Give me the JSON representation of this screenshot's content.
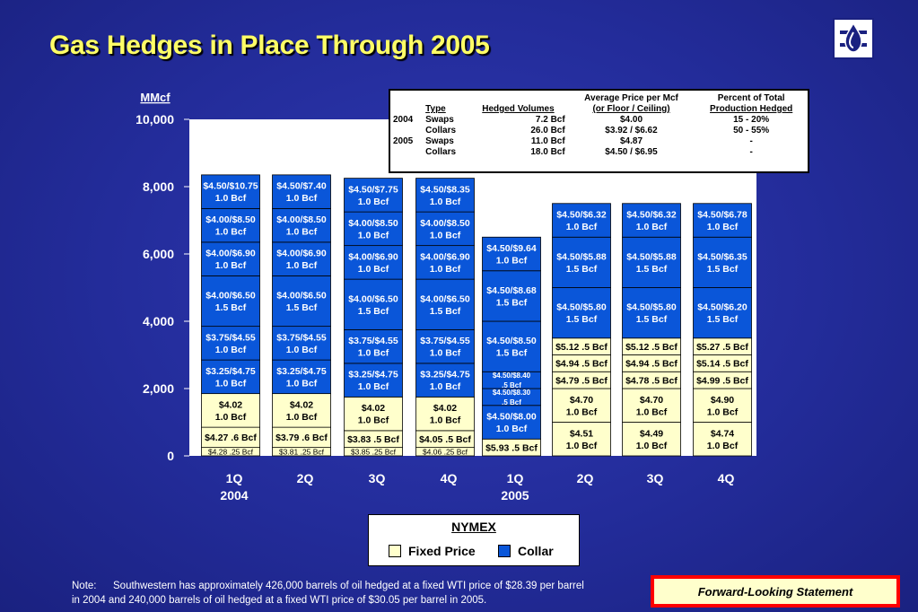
{
  "title": "Gas Hedges in Place Through 2005",
  "colors": {
    "fixed": "#ffffcc",
    "collar": "#0a56d9",
    "background": "#232c9a",
    "title": "#ffff66",
    "plot_bg": "#ffffff"
  },
  "chart_data": {
    "type": "bar",
    "stacked": true,
    "ylabel": "MMcf",
    "ylim": [
      0,
      10000
    ],
    "yticks": [
      0,
      2000,
      4000,
      6000,
      8000,
      10000
    ],
    "ytick_labels": [
      "0",
      "2,000",
      "4,000",
      "6,000",
      "8,000",
      "10,000"
    ],
    "categories": [
      "1Q 2004",
      "2Q 2004",
      "3Q 2004",
      "4Q 2004",
      "1Q 2005",
      "2Q 2005",
      "3Q 2005",
      "4Q 2005"
    ],
    "xtick_labels": [
      "1Q",
      "2Q",
      "3Q",
      "4Q",
      "1Q",
      "2Q",
      "3Q",
      "4Q"
    ],
    "year_labels": [
      {
        "index": 0,
        "text": "2004"
      },
      {
        "index": 4,
        "text": "2005"
      }
    ],
    "bars": [
      {
        "category": "1Q 2004",
        "segments": [
          {
            "value": 250,
            "type": "fixed",
            "lines": [
              "$4.28 .25 Bcf"
            ]
          },
          {
            "value": 600,
            "type": "fixed",
            "lines": [
              "$4.27 .6 Bcf"
            ]
          },
          {
            "value": 1000,
            "type": "fixed",
            "lines": [
              "$4.02",
              "1.0 Bcf"
            ]
          },
          {
            "value": 1000,
            "type": "collar",
            "lines": [
              "$3.25/$4.75",
              "1.0 Bcf"
            ]
          },
          {
            "value": 1000,
            "type": "collar",
            "lines": [
              "$3.75/$4.55",
              "1.0 Bcf"
            ]
          },
          {
            "value": 1500,
            "type": "collar",
            "lines": [
              "$4.00/$6.50",
              "1.5 Bcf"
            ]
          },
          {
            "value": 1000,
            "type": "collar",
            "lines": [
              "$4.00/$6.90",
              "1.0 Bcf"
            ]
          },
          {
            "value": 1000,
            "type": "collar",
            "lines": [
              "$4.00/$8.50",
              "1.0 Bcf"
            ]
          },
          {
            "value": 1000,
            "type": "collar",
            "lines": [
              "$4.50/$10.75",
              "1.0 Bcf"
            ]
          }
        ]
      },
      {
        "category": "2Q 2004",
        "segments": [
          {
            "value": 250,
            "type": "fixed",
            "lines": [
              "$3.81 .25 Bcf"
            ]
          },
          {
            "value": 600,
            "type": "fixed",
            "lines": [
              "$3.79 .6 Bcf"
            ]
          },
          {
            "value": 1000,
            "type": "fixed",
            "lines": [
              "$4.02",
              "1.0 Bcf"
            ]
          },
          {
            "value": 1000,
            "type": "collar",
            "lines": [
              "$3.25/$4.75",
              "1.0 Bcf"
            ]
          },
          {
            "value": 1000,
            "type": "collar",
            "lines": [
              "$3.75/$4.55",
              "1.0 Bcf"
            ]
          },
          {
            "value": 1500,
            "type": "collar",
            "lines": [
              "$4.00/$6.50",
              "1.5 Bcf"
            ]
          },
          {
            "value": 1000,
            "type": "collar",
            "lines": [
              "$4.00/$6.90",
              "1.0 Bcf"
            ]
          },
          {
            "value": 1000,
            "type": "collar",
            "lines": [
              "$4.00/$8.50",
              "1.0 Bcf"
            ]
          },
          {
            "value": 1000,
            "type": "collar",
            "lines": [
              "$4.50/$7.40",
              "1.0 Bcf"
            ]
          }
        ]
      },
      {
        "category": "3Q 2004",
        "segments": [
          {
            "value": 250,
            "type": "fixed",
            "lines": [
              "$3.85 .25 Bcf"
            ]
          },
          {
            "value": 500,
            "type": "fixed",
            "lines": [
              "$3.83 .5 Bcf"
            ]
          },
          {
            "value": 1000,
            "type": "fixed",
            "lines": [
              "$4.02",
              "1.0 Bcf"
            ]
          },
          {
            "value": 1000,
            "type": "collar",
            "lines": [
              "$3.25/$4.75",
              "1.0 Bcf"
            ]
          },
          {
            "value": 1000,
            "type": "collar",
            "lines": [
              "$3.75/$4.55",
              "1.0 Bcf"
            ]
          },
          {
            "value": 1500,
            "type": "collar",
            "lines": [
              "$4.00/$6.50",
              "1.5 Bcf"
            ]
          },
          {
            "value": 1000,
            "type": "collar",
            "lines": [
              "$4.00/$6.90",
              "1.0 Bcf"
            ]
          },
          {
            "value": 1000,
            "type": "collar",
            "lines": [
              "$4.00/$8.50",
              "1.0 Bcf"
            ]
          },
          {
            "value": 1000,
            "type": "collar",
            "lines": [
              "$4.50/$7.75",
              "1.0 Bcf"
            ]
          }
        ]
      },
      {
        "category": "4Q 2004",
        "segments": [
          {
            "value": 250,
            "type": "fixed",
            "lines": [
              "$4.06 .25 Bcf"
            ]
          },
          {
            "value": 500,
            "type": "fixed",
            "lines": [
              "$4.05 .5 Bcf"
            ]
          },
          {
            "value": 1000,
            "type": "fixed",
            "lines": [
              "$4.02",
              "1.0 Bcf"
            ]
          },
          {
            "value": 1000,
            "type": "collar",
            "lines": [
              "$3.25/$4.75",
              "1.0 Bcf"
            ]
          },
          {
            "value": 1000,
            "type": "collar",
            "lines": [
              "$3.75/$4.55",
              "1.0 Bcf"
            ]
          },
          {
            "value": 1500,
            "type": "collar",
            "lines": [
              "$4.00/$6.50",
              "1.5 Bcf"
            ]
          },
          {
            "value": 1000,
            "type": "collar",
            "lines": [
              "$4.00/$6.90",
              "1.0 Bcf"
            ]
          },
          {
            "value": 1000,
            "type": "collar",
            "lines": [
              "$4.00/$8.50",
              "1.0 Bcf"
            ]
          },
          {
            "value": 1000,
            "type": "collar",
            "lines": [
              "$4.50/$8.35",
              "1.0 Bcf"
            ]
          }
        ]
      },
      {
        "category": "1Q 2005",
        "segments": [
          {
            "value": 500,
            "type": "fixed",
            "lines": [
              "$5.93 .5 Bcf"
            ]
          },
          {
            "value": 1000,
            "type": "collar",
            "lines": [
              "$4.50/$8.00",
              "1.0 Bcf"
            ]
          },
          {
            "value": 500,
            "type": "collar",
            "lines": [
              "$4.50/$8.30",
              ".5 Bcf"
            ],
            "small": true
          },
          {
            "value": 500,
            "type": "collar",
            "lines": [
              "$4.50/$8.40",
              ".5 Bcf"
            ],
            "small": true
          },
          {
            "value": 1500,
            "type": "collar",
            "lines": [
              "$4.50/$8.50",
              "1.5 Bcf"
            ]
          },
          {
            "value": 1500,
            "type": "collar",
            "lines": [
              "$4.50/$8.68",
              "1.5 Bcf"
            ]
          },
          {
            "value": 1000,
            "type": "collar",
            "lines": [
              "$4.50/$9.64",
              "1.0 Bcf"
            ]
          }
        ]
      },
      {
        "category": "2Q 2005",
        "segments": [
          {
            "value": 1000,
            "type": "fixed",
            "lines": [
              "$4.51",
              "1.0 Bcf"
            ]
          },
          {
            "value": 1000,
            "type": "fixed",
            "lines": [
              "$4.70",
              "1.0 Bcf"
            ]
          },
          {
            "value": 500,
            "type": "fixed",
            "lines": [
              "$4.79 .5 Bcf"
            ]
          },
          {
            "value": 500,
            "type": "fixed",
            "lines": [
              "$4.94 .5 Bcf"
            ]
          },
          {
            "value": 500,
            "type": "fixed",
            "lines": [
              "$5.12 .5 Bcf"
            ]
          },
          {
            "value": 1500,
            "type": "collar",
            "lines": [
              "$4.50/$5.80",
              "1.5 Bcf"
            ]
          },
          {
            "value": 1500,
            "type": "collar",
            "lines": [
              "$4.50/$5.88",
              "1.5 Bcf"
            ]
          },
          {
            "value": 1000,
            "type": "collar",
            "lines": [
              "$4.50/$6.32",
              "1.0 Bcf"
            ]
          }
        ]
      },
      {
        "category": "3Q 2005",
        "segments": [
          {
            "value": 1000,
            "type": "fixed",
            "lines": [
              "$4.49",
              "1.0 Bcf"
            ]
          },
          {
            "value": 1000,
            "type": "fixed",
            "lines": [
              "$4.70",
              "1.0 Bcf"
            ]
          },
          {
            "value": 500,
            "type": "fixed",
            "lines": [
              "$4.78 .5 Bcf"
            ]
          },
          {
            "value": 500,
            "type": "fixed",
            "lines": [
              "$4.94 .5 Bcf"
            ]
          },
          {
            "value": 500,
            "type": "fixed",
            "lines": [
              "$5.12 .5 Bcf"
            ]
          },
          {
            "value": 1500,
            "type": "collar",
            "lines": [
              "$4.50/$5.80",
              "1.5 Bcf"
            ]
          },
          {
            "value": 1500,
            "type": "collar",
            "lines": [
              "$4.50/$5.88",
              "1.5 Bcf"
            ]
          },
          {
            "value": 1000,
            "type": "collar",
            "lines": [
              "$4.50/$6.32",
              "1.0 Bcf"
            ]
          }
        ]
      },
      {
        "category": "4Q 2005",
        "segments": [
          {
            "value": 1000,
            "type": "fixed",
            "lines": [
              "$4.74",
              "1.0 Bcf"
            ]
          },
          {
            "value": 1000,
            "type": "fixed",
            "lines": [
              "$4.90",
              "1.0 Bcf"
            ]
          },
          {
            "value": 500,
            "type": "fixed",
            "lines": [
              "$4.99 .5 Bcf"
            ]
          },
          {
            "value": 500,
            "type": "fixed",
            "lines": [
              "$5.14 .5 Bcf"
            ]
          },
          {
            "value": 500,
            "type": "fixed",
            "lines": [
              "$5.27 .5 Bcf"
            ]
          },
          {
            "value": 1500,
            "type": "collar",
            "lines": [
              "$4.50/$6.20",
              "1.5 Bcf"
            ]
          },
          {
            "value": 1500,
            "type": "collar",
            "lines": [
              "$4.50/$6.35",
              "1.5 Bcf"
            ]
          },
          {
            "value": 1000,
            "type": "collar",
            "lines": [
              "$4.50/$6.78",
              "1.0 Bcf"
            ]
          }
        ]
      }
    ],
    "legend": {
      "title": "NYMEX",
      "items": [
        {
          "label": "Fixed Price",
          "type": "fixed"
        },
        {
          "label": "Collar",
          "type": "collar"
        }
      ]
    }
  },
  "hedge_table": {
    "headers": {
      "type": "Type",
      "volumes": "Hedged Volumes",
      "price_line1": "Average Price per Mcf",
      "price_line2": "(or Floor / Ceiling)",
      "percent_line1": "Percent of Total",
      "percent_line2": "Production Hedged"
    },
    "rows": [
      {
        "year": "2004",
        "type": "Swaps",
        "volume": "7.2 Bcf",
        "price": "$4.00",
        "percent": "15 - 20%"
      },
      {
        "year": "",
        "type": "Collars",
        "volume": "26.0 Bcf",
        "price": "$3.92 / $6.62",
        "percent": "50 - 55%"
      },
      {
        "year": "2005",
        "type": "Swaps",
        "volume": "11.0 Bcf",
        "price": "$4.87",
        "percent": "-"
      },
      {
        "year": "",
        "type": "Collars",
        "volume": "18.0 Bcf",
        "price": "$4.50 / $6.95",
        "percent": "-"
      }
    ]
  },
  "note": {
    "label": "Note:",
    "line1": "Southwestern has approximately 426,000 barrels of oil hedged at a fixed WTI price of $28.39 per barrel",
    "line2": "in 2004 and 240,000 barrels of oil hedged at a fixed WTI price of $30.05 per barrel in 2005."
  },
  "forward_looking": "Forward-Looking Statement"
}
